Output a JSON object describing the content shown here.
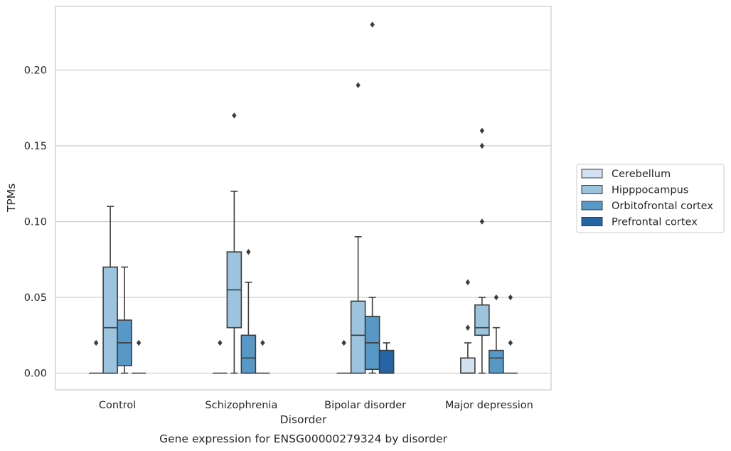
{
  "caption": "Gene expression for ENSG00000279324 by disorder",
  "chart_data": {
    "type": "box",
    "title": "",
    "xlabel": "Disorder",
    "ylabel": "TPMs",
    "categories": [
      "Control",
      "Schizophrenia",
      "Bipolar disorder",
      "Major depression"
    ],
    "ylim": [
      -0.011,
      0.242
    ],
    "yticks": [
      0.0,
      0.05,
      0.1,
      0.15,
      0.2
    ],
    "ytick_labels": [
      "0.00",
      "0.05",
      "0.10",
      "0.15",
      "0.20"
    ],
    "grid": "horizontal",
    "legend_position": "right",
    "hue_order": [
      "Cerebellum",
      "Hipppocampus",
      "Orbitofrontal cortex",
      "Prefrontal cortex"
    ],
    "hue_colors": [
      "#d3e2f0",
      "#9cc4de",
      "#5798c6",
      "#2565a5"
    ],
    "series": [
      {
        "name": "Cerebellum",
        "boxes": [
          {
            "q1": 0.0,
            "median": 0.0,
            "q3": 0.0,
            "whislo": 0.0,
            "whishi": 0.0,
            "fliers": [
              0.02
            ]
          },
          {
            "q1": 0.0,
            "median": 0.0,
            "q3": 0.0,
            "whislo": 0.0,
            "whishi": 0.0,
            "fliers": [
              0.02
            ]
          },
          {
            "q1": 0.0,
            "median": 0.0,
            "q3": 0.0,
            "whislo": 0.0,
            "whishi": 0.0,
            "fliers": [
              0.02
            ]
          },
          {
            "q1": 0.0,
            "median": 0.0,
            "q3": 0.01,
            "whislo": 0.0,
            "whishi": 0.02,
            "fliers": [
              0.03,
              0.06
            ]
          }
        ]
      },
      {
        "name": "Hipppocampus",
        "boxes": [
          {
            "q1": 0.0,
            "median": 0.03,
            "q3": 0.07,
            "whislo": 0.0,
            "whishi": 0.11,
            "fliers": []
          },
          {
            "q1": 0.03,
            "median": 0.055,
            "q3": 0.08,
            "whislo": 0.0,
            "whishi": 0.12,
            "fliers": [
              0.17
            ]
          },
          {
            "q1": 0.0,
            "median": 0.025,
            "q3": 0.0475,
            "whislo": 0.0,
            "whishi": 0.09,
            "fliers": [
              0.19
            ]
          },
          {
            "q1": 0.025,
            "median": 0.03,
            "q3": 0.045,
            "whislo": 0.0,
            "whishi": 0.05,
            "fliers": [
              0.1,
              0.15,
              0.16
            ]
          }
        ]
      },
      {
        "name": "Orbitofrontal cortex",
        "boxes": [
          {
            "q1": 0.005,
            "median": 0.02,
            "q3": 0.035,
            "whislo": 0.0,
            "whishi": 0.07,
            "fliers": []
          },
          {
            "q1": 0.0,
            "median": 0.01,
            "q3": 0.025,
            "whislo": 0.0,
            "whishi": 0.06,
            "fliers": [
              0.08
            ]
          },
          {
            "q1": 0.0025,
            "median": 0.02,
            "q3": 0.0375,
            "whislo": 0.0,
            "whishi": 0.05,
            "fliers": [
              0.23
            ]
          },
          {
            "q1": 0.0,
            "median": 0.01,
            "q3": 0.015,
            "whislo": 0.0,
            "whishi": 0.03,
            "fliers": [
              0.05
            ]
          }
        ]
      },
      {
        "name": "Prefrontal cortex",
        "boxes": [
          {
            "q1": 0.0,
            "median": 0.0,
            "q3": 0.0,
            "whislo": 0.0,
            "whishi": 0.0,
            "fliers": [
              0.02
            ]
          },
          {
            "q1": 0.0,
            "median": 0.0,
            "q3": 0.0,
            "whislo": 0.0,
            "whishi": 0.0,
            "fliers": [
              0.02
            ]
          },
          {
            "q1": 0.0,
            "median": 0.0,
            "q3": 0.015,
            "whislo": 0.0,
            "whishi": 0.02,
            "fliers": []
          },
          {
            "q1": 0.0,
            "median": 0.0,
            "q3": 0.0,
            "whislo": 0.0,
            "whishi": 0.0,
            "fliers": [
              0.02,
              0.05
            ]
          }
        ]
      }
    ]
  }
}
